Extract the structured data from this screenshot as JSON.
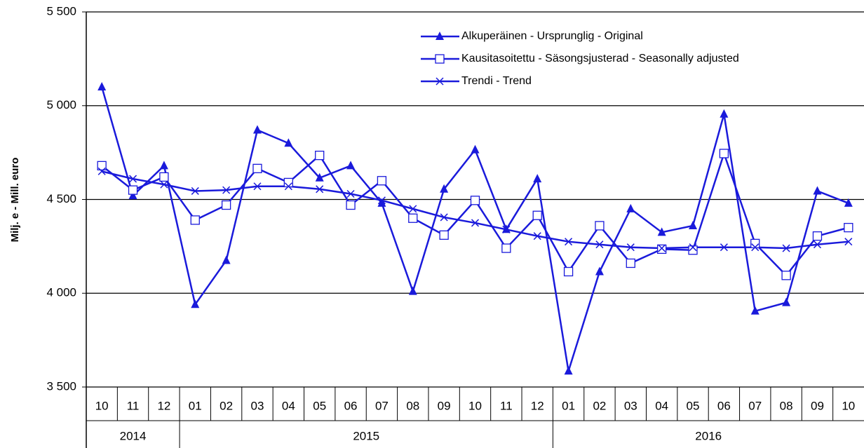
{
  "chart_data": {
    "type": "line",
    "y_label": "Milj. e - Mill. euro",
    "categories": [
      "10",
      "11",
      "12",
      "01",
      "02",
      "03",
      "04",
      "05",
      "06",
      "07",
      "08",
      "09",
      "10",
      "11",
      "12",
      "01",
      "02",
      "03",
      "04",
      "05",
      "06",
      "07",
      "08",
      "09",
      "10"
    ],
    "years": [
      "2014",
      "2014",
      "2014",
      "2015",
      "2015",
      "2015",
      "2015",
      "2015",
      "2015",
      "2015",
      "2015",
      "2015",
      "2015",
      "2015",
      "2015",
      "2016",
      "2016",
      "2016",
      "2016",
      "2016",
      "2016",
      "2016",
      "2016",
      "2016",
      "2016"
    ],
    "ylim": [
      3500,
      5500
    ],
    "yticks": [
      {
        "value": 3500,
        "label": "3 500"
      },
      {
        "value": 4000,
        "label": "4 000"
      },
      {
        "value": 4500,
        "label": "4 500"
      },
      {
        "value": 5000,
        "label": "5 000"
      },
      {
        "value": 5500,
        "label": "5 500"
      }
    ],
    "grid": true,
    "legend": "top-right",
    "series": [
      {
        "name": "Alkuperäinen - Ursprunglig - Original",
        "color": "#1a1adb",
        "marker": "triangle",
        "values": [
          5100,
          4520,
          4680,
          3940,
          4175,
          4870,
          4800,
          4615,
          4680,
          4480,
          4010,
          4555,
          4765,
          4340,
          4610,
          3585,
          4115,
          4450,
          4325,
          4360,
          4955,
          3905,
          3950,
          4545,
          4480
        ]
      },
      {
        "name": "Kausitasoitettu - Säsongsjusterad - Seasonally adjusted",
        "color": "#1a1adb",
        "marker": "square",
        "values": [
          4680,
          4550,
          4620,
          4390,
          4470,
          4665,
          4590,
          4735,
          4470,
          4600,
          4400,
          4310,
          4495,
          4240,
          4415,
          4115,
          4360,
          4160,
          4235,
          4230,
          4745,
          4265,
          4095,
          4305,
          4350
        ]
      },
      {
        "name": "Trendi - Trend",
        "color": "#1a1adb",
        "marker": "x",
        "values": [
          4650,
          4610,
          4580,
          4545,
          4550,
          4570,
          4570,
          4555,
          4530,
          4495,
          4450,
          4405,
          4375,
          4340,
          4305,
          4275,
          4260,
          4245,
          4240,
          4245,
          4245,
          4245,
          4240,
          4260,
          4275
        ]
      }
    ]
  }
}
